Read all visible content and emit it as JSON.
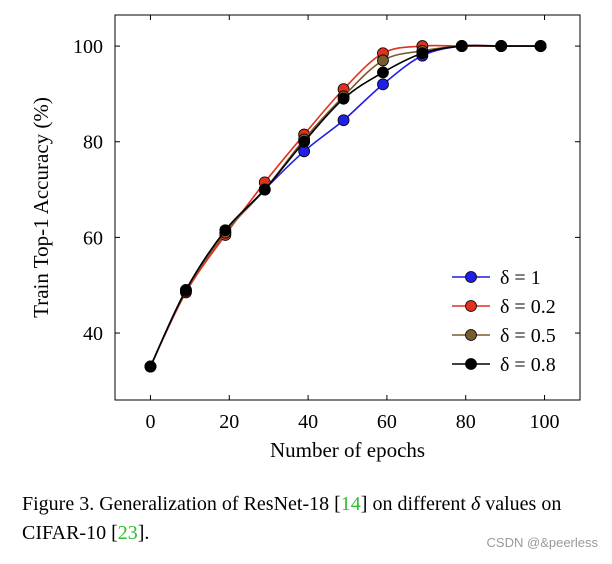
{
  "chart_data": {
    "type": "line",
    "xlabel": "Number of epochs",
    "ylabel": "Train Top-1 Accuracy (%)",
    "xlim": [
      -9,
      109
    ],
    "ylim": [
      26,
      106.5
    ],
    "xticks": [
      0,
      20,
      40,
      60,
      80,
      100
    ],
    "yticks": [
      40,
      60,
      80,
      100
    ],
    "x": [
      0,
      9,
      19,
      29,
      39,
      49,
      59,
      69,
      79,
      89,
      99
    ],
    "legend_position": "bottom-right",
    "grid": false,
    "series": [
      {
        "name": "δ = 1",
        "color": "#1f1fe6",
        "values": [
          33,
          49,
          61,
          70,
          78,
          84.5,
          92,
          98,
          100,
          100,
          100
        ]
      },
      {
        "name": "δ = 0.2",
        "color": "#e0301e",
        "values": [
          33,
          48.5,
          60.5,
          71.5,
          81.5,
          91,
          98.5,
          100,
          100,
          100,
          100
        ]
      },
      {
        "name": "δ = 0.5",
        "color": "#7a5a30",
        "values": [
          33,
          48.8,
          61,
          70,
          80.5,
          89.5,
          97,
          99,
          100,
          100,
          100
        ]
      },
      {
        "name": "δ = 0.8",
        "color": "#000000",
        "values": [
          33,
          49,
          61.5,
          70,
          80,
          89,
          94.5,
          98.5,
          100,
          100,
          100
        ]
      }
    ]
  },
  "caption": {
    "prefix": "Figure 3.  Generalization of ResNet-18 [",
    "ref1": "14",
    "middle": "] on different ",
    "delta": "δ",
    "middle2": " values on CIFAR-10 [",
    "ref2": "23",
    "suffix": "]."
  },
  "watermark": "CSDN @&peerless"
}
